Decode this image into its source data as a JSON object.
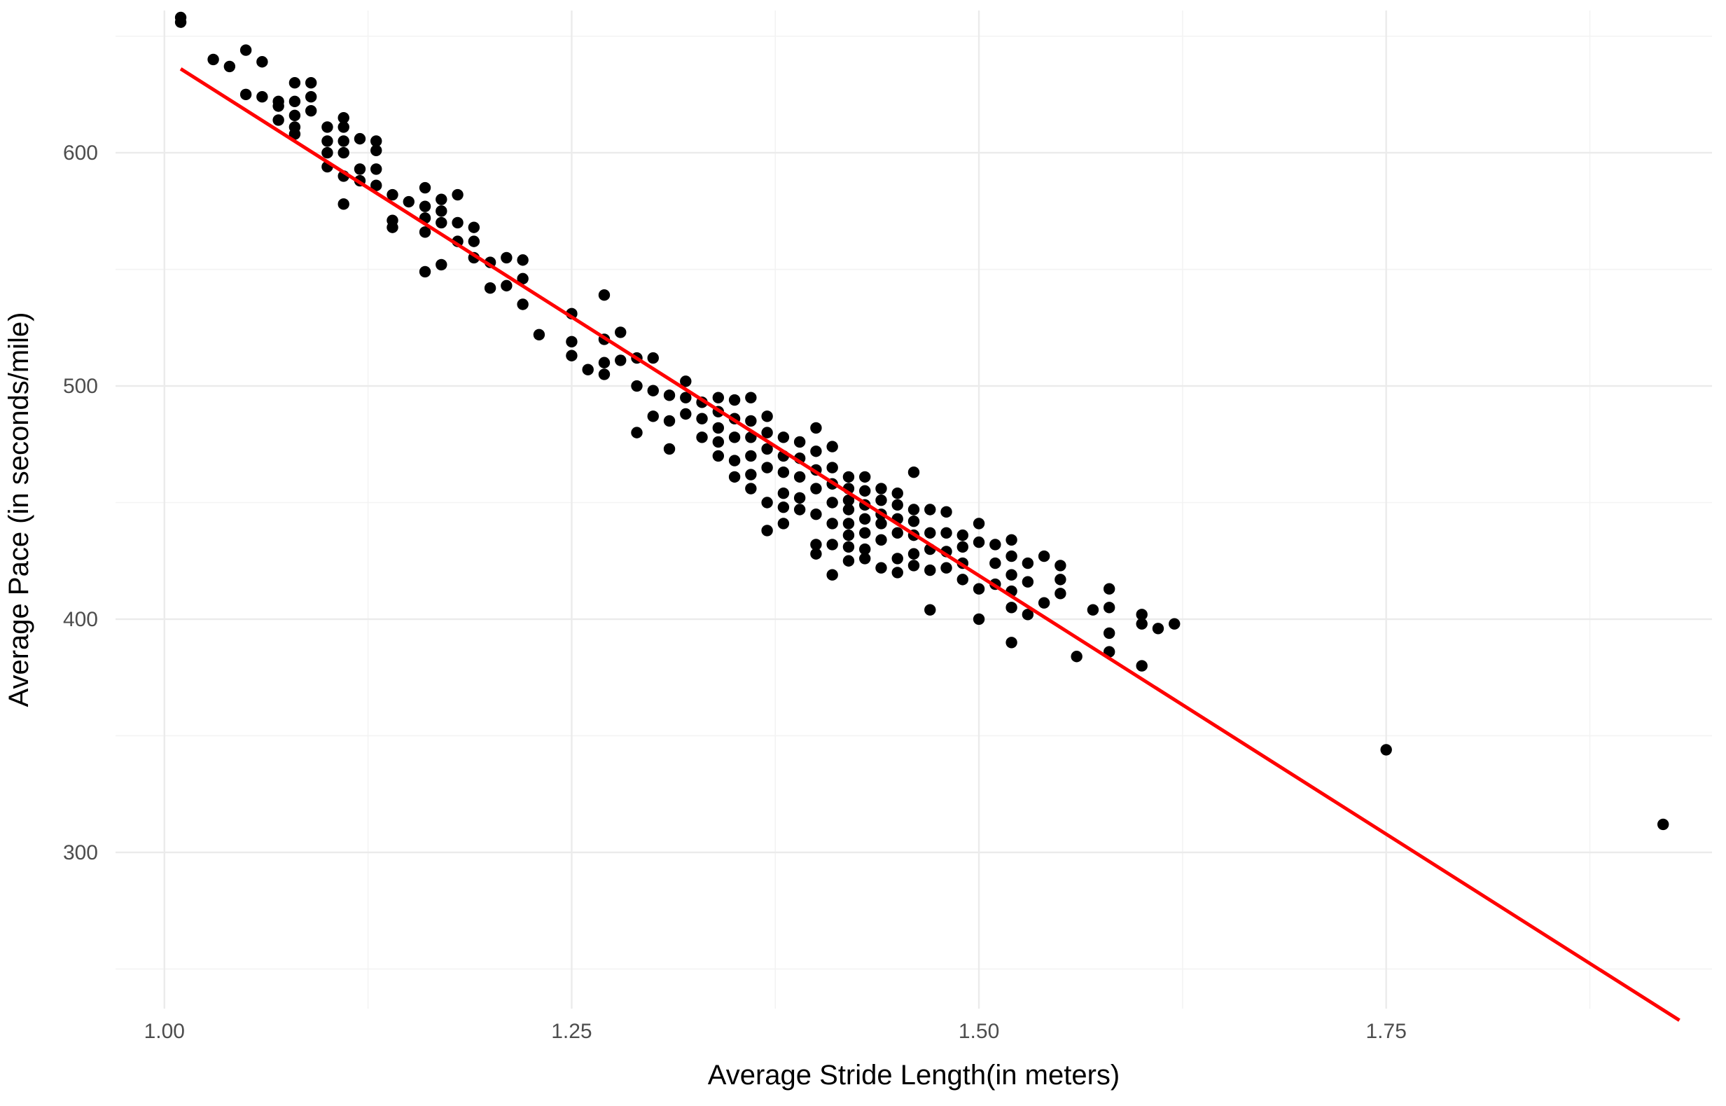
{
  "chart_data": {
    "type": "scatter",
    "title": "",
    "xlabel": "Average Stride Length(in meters)",
    "ylabel": "Average Pace (in seconds/mile)",
    "xlim": [
      0.97,
      1.95
    ],
    "ylim": [
      233,
      661
    ],
    "x_ticks": [
      1.0,
      1.25,
      1.5,
      1.75
    ],
    "x_tick_labels": [
      "1.00",
      "1.25",
      "1.50",
      "1.75"
    ],
    "y_ticks": [
      300,
      400,
      500,
      600
    ],
    "y_tick_labels": [
      "300",
      "400",
      "500",
      "600"
    ],
    "grid": true,
    "legend": "none",
    "colors": {
      "points": "#000000",
      "fit_line": "#ff0000",
      "grid": "#ebebeb"
    },
    "fit_line": {
      "x": [
        1.01,
        1.93
      ],
      "y": [
        636,
        228
      ]
    },
    "series": [
      {
        "x": [
          1.01,
          1.01,
          1.03,
          1.04,
          1.05,
          1.05,
          1.06,
          1.06,
          1.07,
          1.07,
          1.07,
          1.08,
          1.08,
          1.08,
          1.08,
          1.08,
          1.09,
          1.09,
          1.09,
          1.1,
          1.1,
          1.1,
          1.1,
          1.11,
          1.11,
          1.11,
          1.11,
          1.11,
          1.11,
          1.12,
          1.12,
          1.12,
          1.13,
          1.13,
          1.13,
          1.13,
          1.14,
          1.14,
          1.14,
          1.15,
          1.16,
          1.16,
          1.16,
          1.16,
          1.16,
          1.17,
          1.17,
          1.17,
          1.17,
          1.18,
          1.18,
          1.18,
          1.19,
          1.19,
          1.19,
          1.2,
          1.2,
          1.21,
          1.21,
          1.22,
          1.22,
          1.22,
          1.23,
          1.25,
          1.25,
          1.25,
          1.26,
          1.27,
          1.27,
          1.27,
          1.27,
          1.28,
          1.28,
          1.29,
          1.29,
          1.29,
          1.3,
          1.3,
          1.3,
          1.31,
          1.31,
          1.31,
          1.32,
          1.32,
          1.32,
          1.33,
          1.33,
          1.33,
          1.34,
          1.34,
          1.34,
          1.34,
          1.34,
          1.35,
          1.35,
          1.35,
          1.35,
          1.35,
          1.36,
          1.36,
          1.36,
          1.36,
          1.36,
          1.36,
          1.37,
          1.37,
          1.37,
          1.37,
          1.37,
          1.37,
          1.38,
          1.38,
          1.38,
          1.38,
          1.38,
          1.38,
          1.39,
          1.39,
          1.39,
          1.39,
          1.39,
          1.4,
          1.4,
          1.4,
          1.4,
          1.4,
          1.4,
          1.4,
          1.41,
          1.41,
          1.41,
          1.41,
          1.41,
          1.41,
          1.41,
          1.42,
          1.42,
          1.42,
          1.42,
          1.42,
          1.42,
          1.42,
          1.42,
          1.43,
          1.43,
          1.43,
          1.43,
          1.43,
          1.43,
          1.43,
          1.44,
          1.44,
          1.44,
          1.44,
          1.44,
          1.44,
          1.45,
          1.45,
          1.45,
          1.45,
          1.45,
          1.45,
          1.46,
          1.46,
          1.46,
          1.46,
          1.46,
          1.46,
          1.47,
          1.47,
          1.47,
          1.47,
          1.47,
          1.48,
          1.48,
          1.48,
          1.48,
          1.49,
          1.49,
          1.49,
          1.49,
          1.5,
          1.5,
          1.5,
          1.5,
          1.51,
          1.51,
          1.51,
          1.52,
          1.52,
          1.52,
          1.52,
          1.52,
          1.52,
          1.53,
          1.53,
          1.53,
          1.54,
          1.54,
          1.55,
          1.55,
          1.55,
          1.56,
          1.57,
          1.58,
          1.58,
          1.58,
          1.58,
          1.6,
          1.6,
          1.6,
          1.61,
          1.62,
          1.75,
          1.92
        ],
        "y": [
          658,
          656,
          640,
          637,
          644,
          625,
          639,
          624,
          622,
          620,
          614,
          630,
          622,
          616,
          611,
          608,
          630,
          624,
          618,
          611,
          605,
          600,
          594,
          615,
          611,
          605,
          600,
          590,
          578,
          606,
          593,
          588,
          605,
          601,
          593,
          586,
          582,
          571,
          568,
          579,
          585,
          577,
          572,
          566,
          549,
          580,
          575,
          570,
          552,
          582,
          570,
          562,
          568,
          562,
          555,
          553,
          542,
          555,
          543,
          554,
          546,
          535,
          522,
          531,
          519,
          513,
          507,
          539,
          520,
          510,
          505,
          523,
          511,
          512,
          500,
          480,
          512,
          498,
          487,
          496,
          485,
          473,
          502,
          495,
          488,
          493,
          486,
          478,
          495,
          489,
          482,
          476,
          470,
          494,
          486,
          478,
          468,
          461,
          495,
          485,
          478,
          470,
          462,
          456,
          487,
          480,
          473,
          465,
          450,
          438,
          478,
          470,
          463,
          454,
          448,
          441,
          476,
          469,
          461,
          452,
          447,
          482,
          472,
          464,
          456,
          445,
          432,
          428,
          474,
          465,
          458,
          450,
          441,
          432,
          419,
          461,
          456,
          451,
          447,
          441,
          436,
          431,
          425,
          461,
          455,
          449,
          443,
          437,
          430,
          426,
          456,
          451,
          445,
          441,
          434,
          422,
          454,
          449,
          443,
          437,
          426,
          420,
          463,
          447,
          442,
          436,
          428,
          423,
          447,
          437,
          430,
          421,
          404,
          446,
          437,
          429,
          422,
          436,
          431,
          424,
          417,
          441,
          433,
          413,
          400,
          432,
          424,
          415,
          434,
          427,
          419,
          412,
          405,
          390,
          424,
          416,
          402,
          427,
          407,
          423,
          417,
          411,
          384,
          404,
          413,
          405,
          394,
          386,
          402,
          398,
          380,
          396,
          398,
          344,
          312
        ]
      }
    ]
  }
}
